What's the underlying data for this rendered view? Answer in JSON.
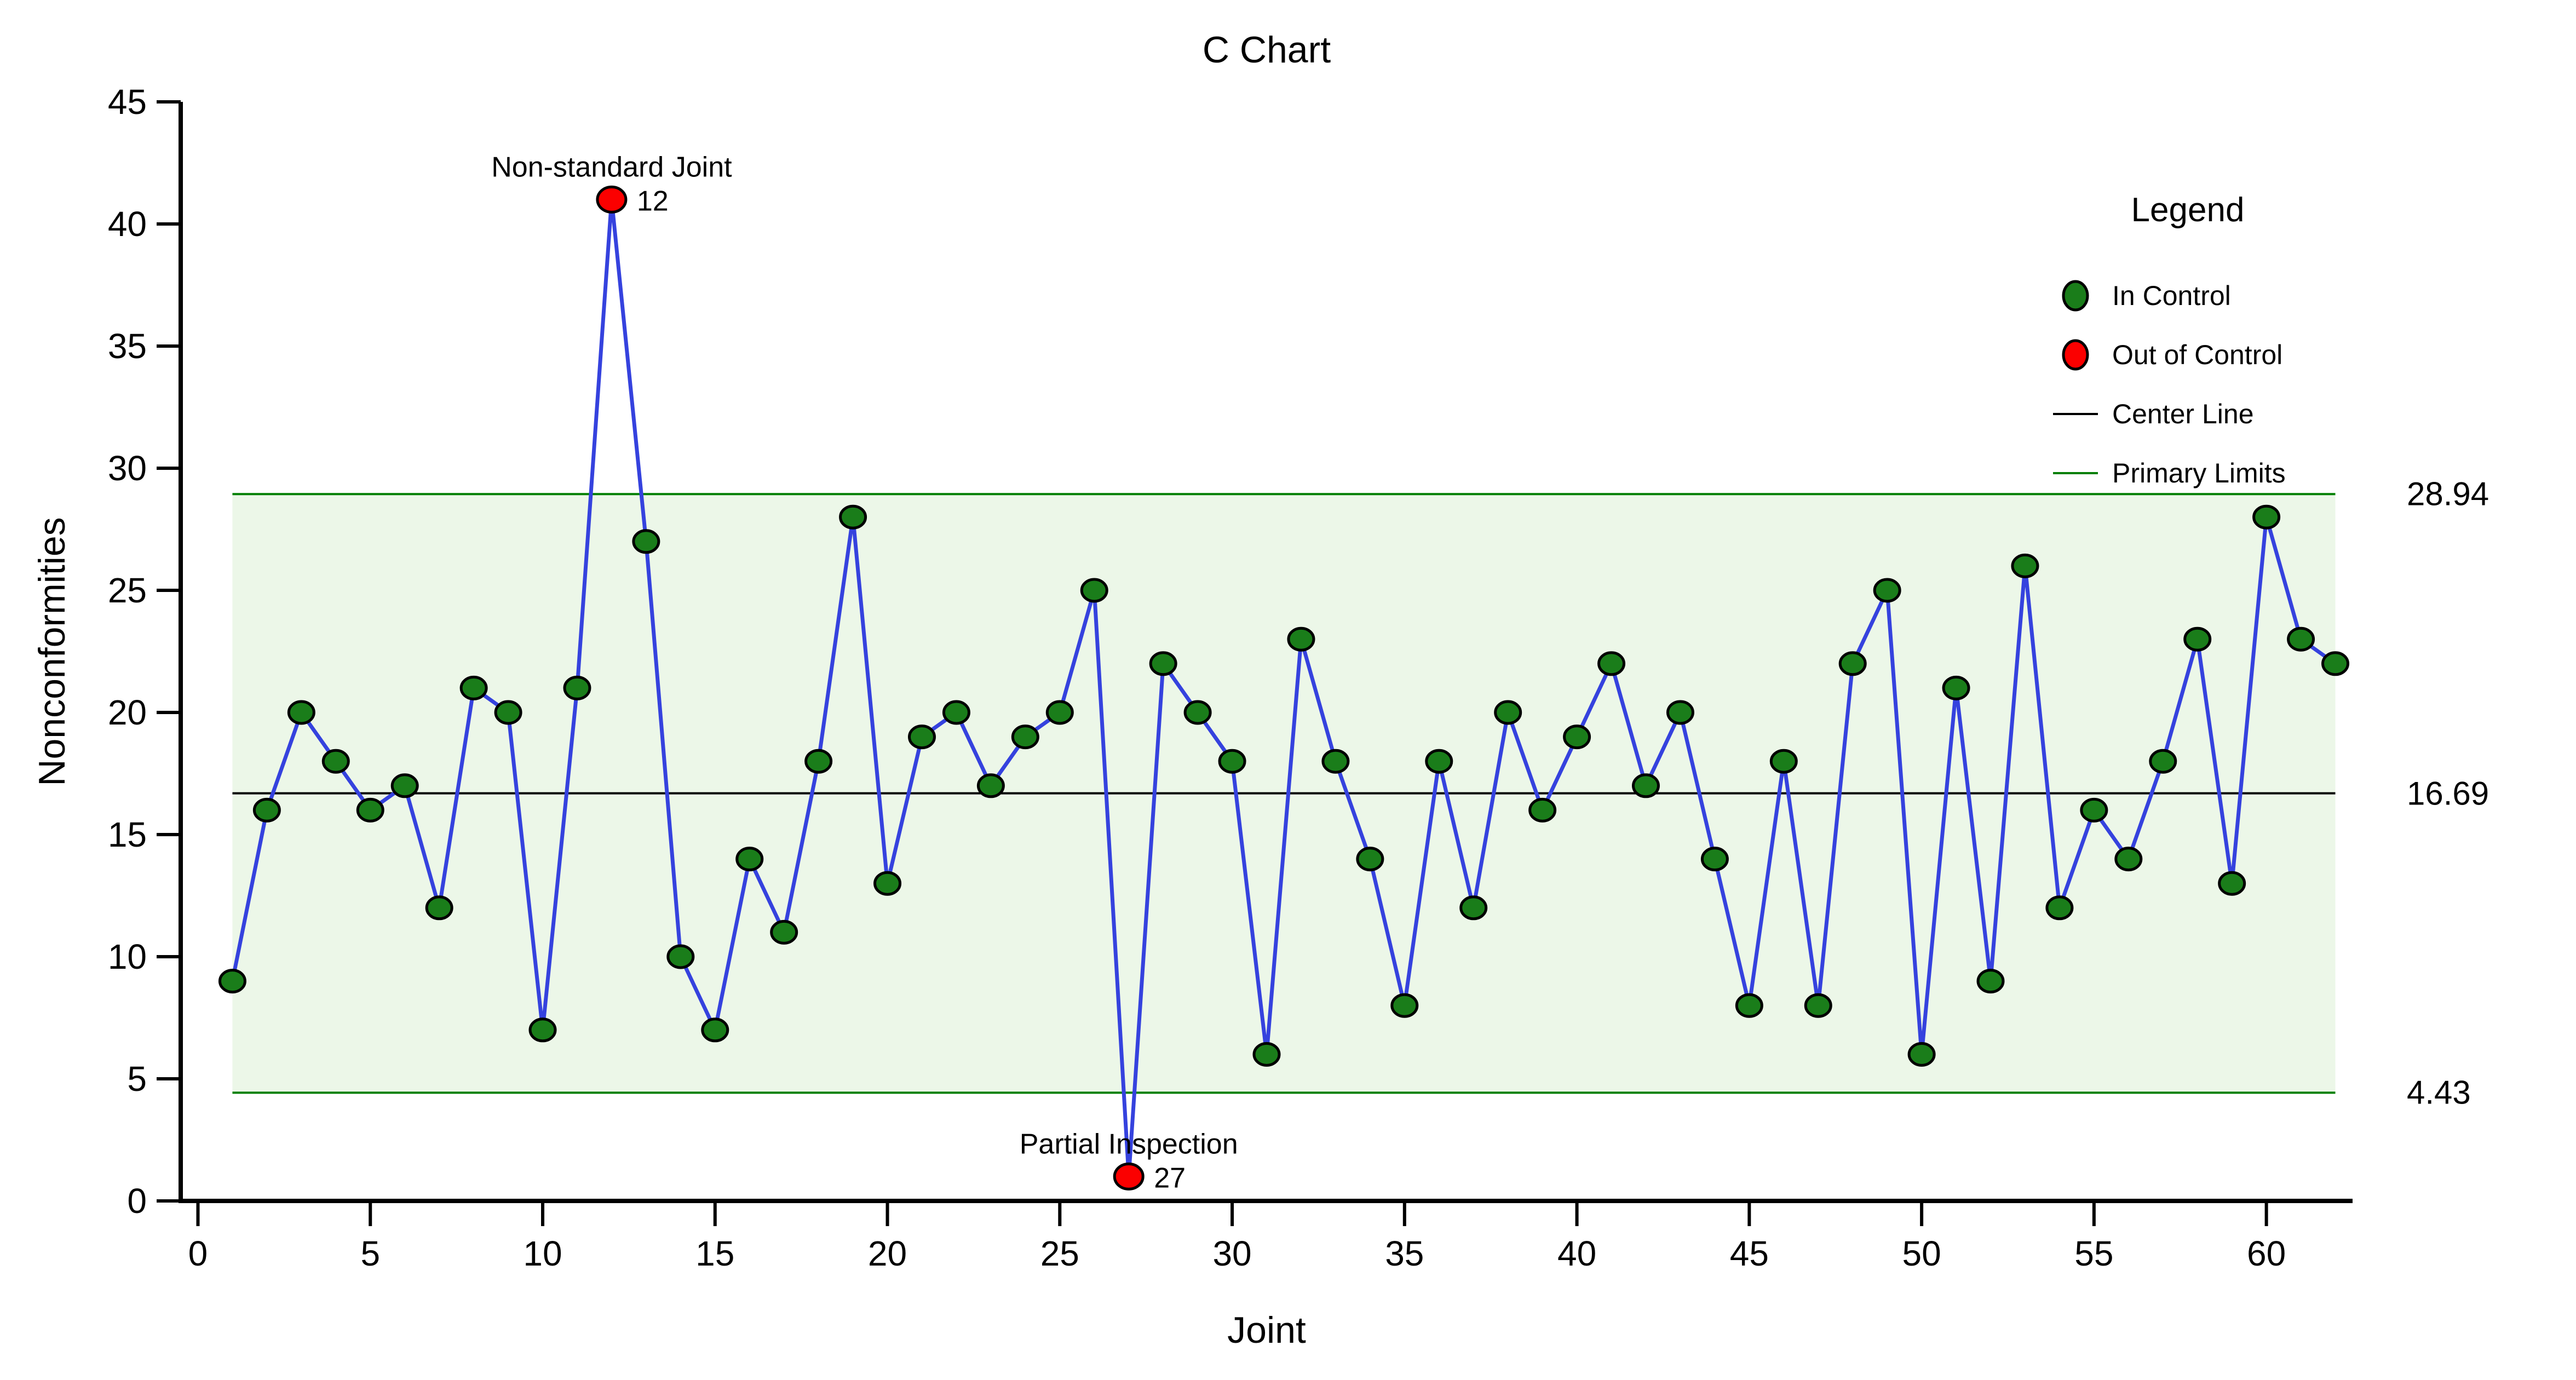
{
  "title": "C Chart",
  "legend": {
    "title": "Legend",
    "items": [
      {
        "label": "In Control",
        "marker": "circle",
        "color": "#1a7d1a"
      },
      {
        "label": "Out of Control",
        "marker": "circle",
        "color": "#fb0000"
      },
      {
        "label": "Center Line",
        "marker": "line",
        "color": "#000000"
      },
      {
        "label": "Primary Limits",
        "marker": "line",
        "color": "#007f00"
      }
    ]
  },
  "chart_data": {
    "type": "line",
    "title": "C Chart",
    "xlabel": "Joint",
    "ylabel": "Nonconformities",
    "xlim": [
      -0.5,
      62.5
    ],
    "ylim": [
      0,
      45
    ],
    "xticks": [
      0,
      5,
      10,
      15,
      20,
      25,
      30,
      35,
      40,
      45,
      50,
      55,
      60
    ],
    "yticks": [
      0,
      5,
      10,
      15,
      20,
      25,
      30,
      35,
      40,
      45
    ],
    "grid": false,
    "legend_position": "upper right",
    "center_line": 16.69,
    "upper_limit": 28.94,
    "lower_limit": 4.43,
    "limit_band_x": [
      1,
      62
    ],
    "right_labels": [
      "28.94",
      "16.69",
      "4.43"
    ],
    "x": [
      1,
      2,
      3,
      4,
      5,
      6,
      7,
      8,
      9,
      10,
      11,
      12,
      13,
      14,
      15,
      16,
      17,
      18,
      19,
      20,
      21,
      22,
      23,
      24,
      25,
      26,
      27,
      28,
      29,
      30,
      31,
      32,
      33,
      34,
      35,
      36,
      37,
      38,
      39,
      40,
      41,
      42,
      43,
      44,
      45,
      46,
      47,
      48,
      49,
      50,
      51,
      52,
      53,
      54,
      55,
      56,
      57,
      58,
      59,
      60,
      61,
      62
    ],
    "values": [
      9,
      16,
      20,
      18,
      16,
      17,
      12,
      21,
      20,
      7,
      21,
      41,
      27,
      10,
      7,
      14,
      11,
      18,
      28,
      13,
      19,
      20,
      17,
      19,
      20,
      25,
      1,
      22,
      20,
      18,
      6,
      23,
      18,
      14,
      8,
      18,
      12,
      20,
      16,
      19,
      22,
      17,
      20,
      14,
      8,
      18,
      8,
      22,
      25,
      6,
      21,
      9,
      26,
      12,
      16,
      14,
      18,
      23,
      13,
      28,
      23,
      22
    ],
    "out_of_control": [
      {
        "x": 12,
        "y": 41,
        "label": "12",
        "annotation": "Non-standard Joint"
      },
      {
        "x": 27,
        "y": 1,
        "label": "27",
        "annotation": "Partial Inspection"
      }
    ],
    "colors": {
      "in_control": "#1a7d1a",
      "out_of_control": "#fb0000",
      "line": "#3542de",
      "band": "#ecf7e8",
      "limit": "#007f00",
      "center": "#000000",
      "axis": "#000000"
    }
  }
}
